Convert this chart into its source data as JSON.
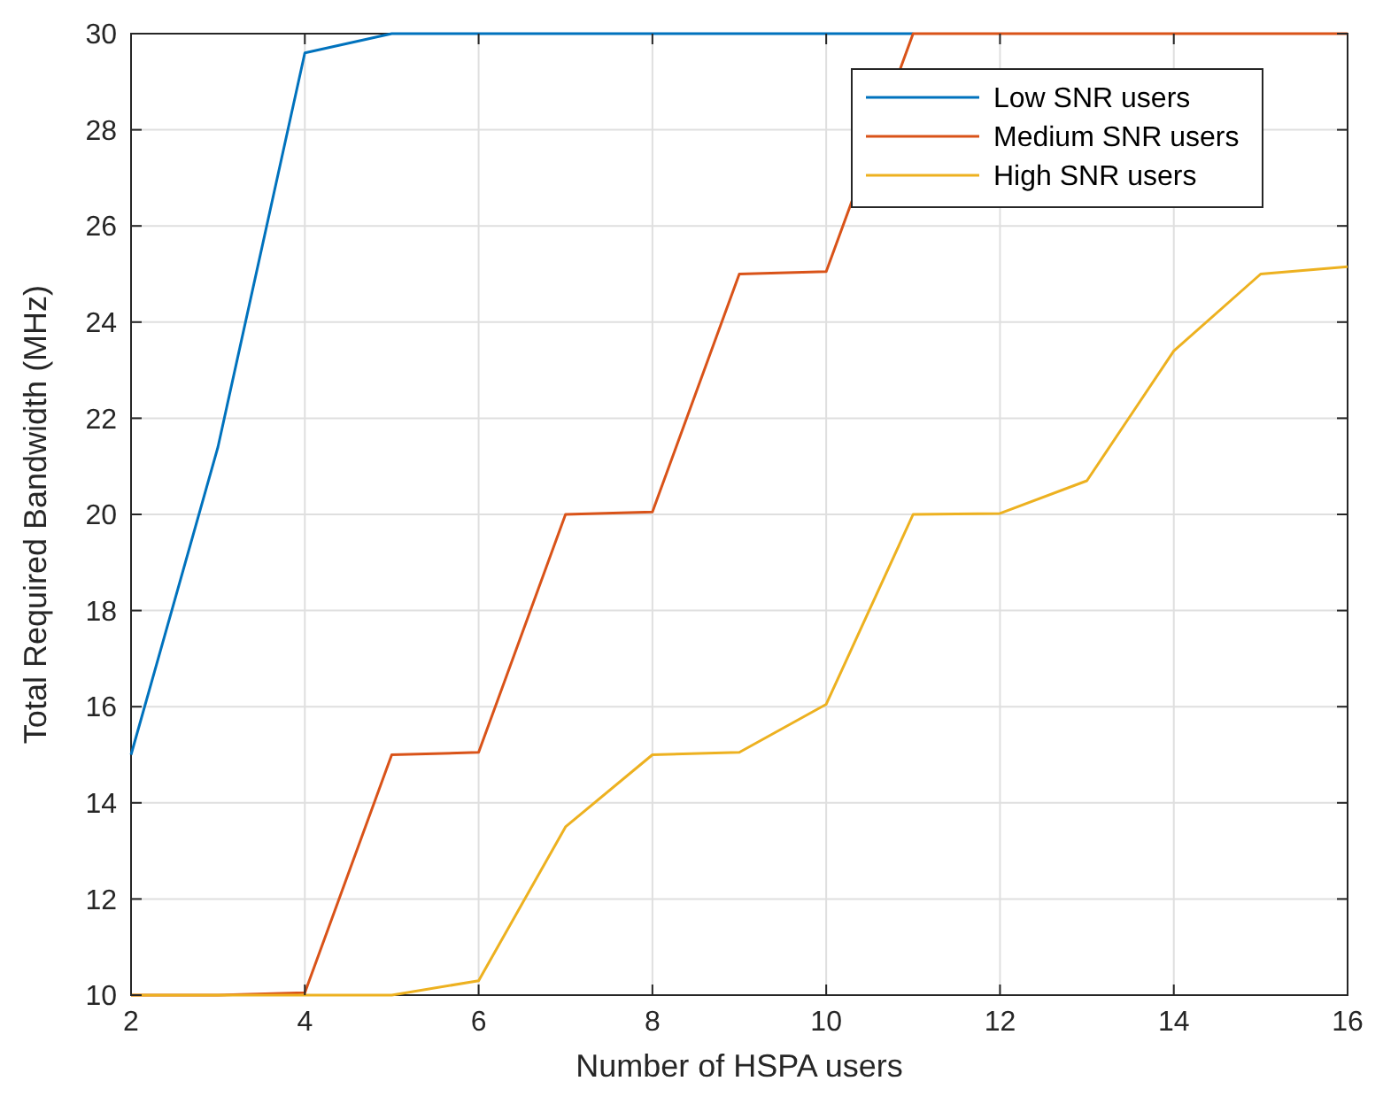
{
  "chart_data": {
    "type": "line",
    "xlabel": "Number of HSPA users",
    "ylabel": "Total Required Bandwidth (MHz)",
    "x": [
      2,
      3,
      4,
      5,
      6,
      7,
      8,
      9,
      10,
      11,
      12,
      13,
      14,
      15,
      16
    ],
    "series": [
      {
        "name": "Low SNR users",
        "color": "#0072bd",
        "values": [
          15,
          21.4,
          29.6,
          30,
          30,
          30,
          30,
          30,
          30,
          30,
          null,
          null,
          null,
          null,
          null
        ]
      },
      {
        "name": "Medium SNR users",
        "color": "#d95319",
        "values": [
          10,
          10,
          10.05,
          15,
          15.05,
          20,
          20.05,
          25,
          25.05,
          30,
          30,
          30,
          30,
          30,
          30
        ]
      },
      {
        "name": "High SNR users",
        "color": "#edb120",
        "values": [
          10,
          10,
          10,
          10,
          10.3,
          13.5,
          15,
          15.05,
          16.05,
          20,
          20.02,
          20.7,
          23.4,
          25,
          25.15
        ]
      }
    ],
    "xlim": [
      2,
      16
    ],
    "xticks": [
      2,
      4,
      6,
      8,
      10,
      12,
      14,
      16
    ],
    "ylim": [
      10,
      30
    ],
    "yticks": [
      10,
      12,
      14,
      16,
      18,
      20,
      22,
      24,
      26,
      28,
      30
    ],
    "grid": true,
    "legend": "top right",
    "marker": "none",
    "line_style": "solid"
  }
}
